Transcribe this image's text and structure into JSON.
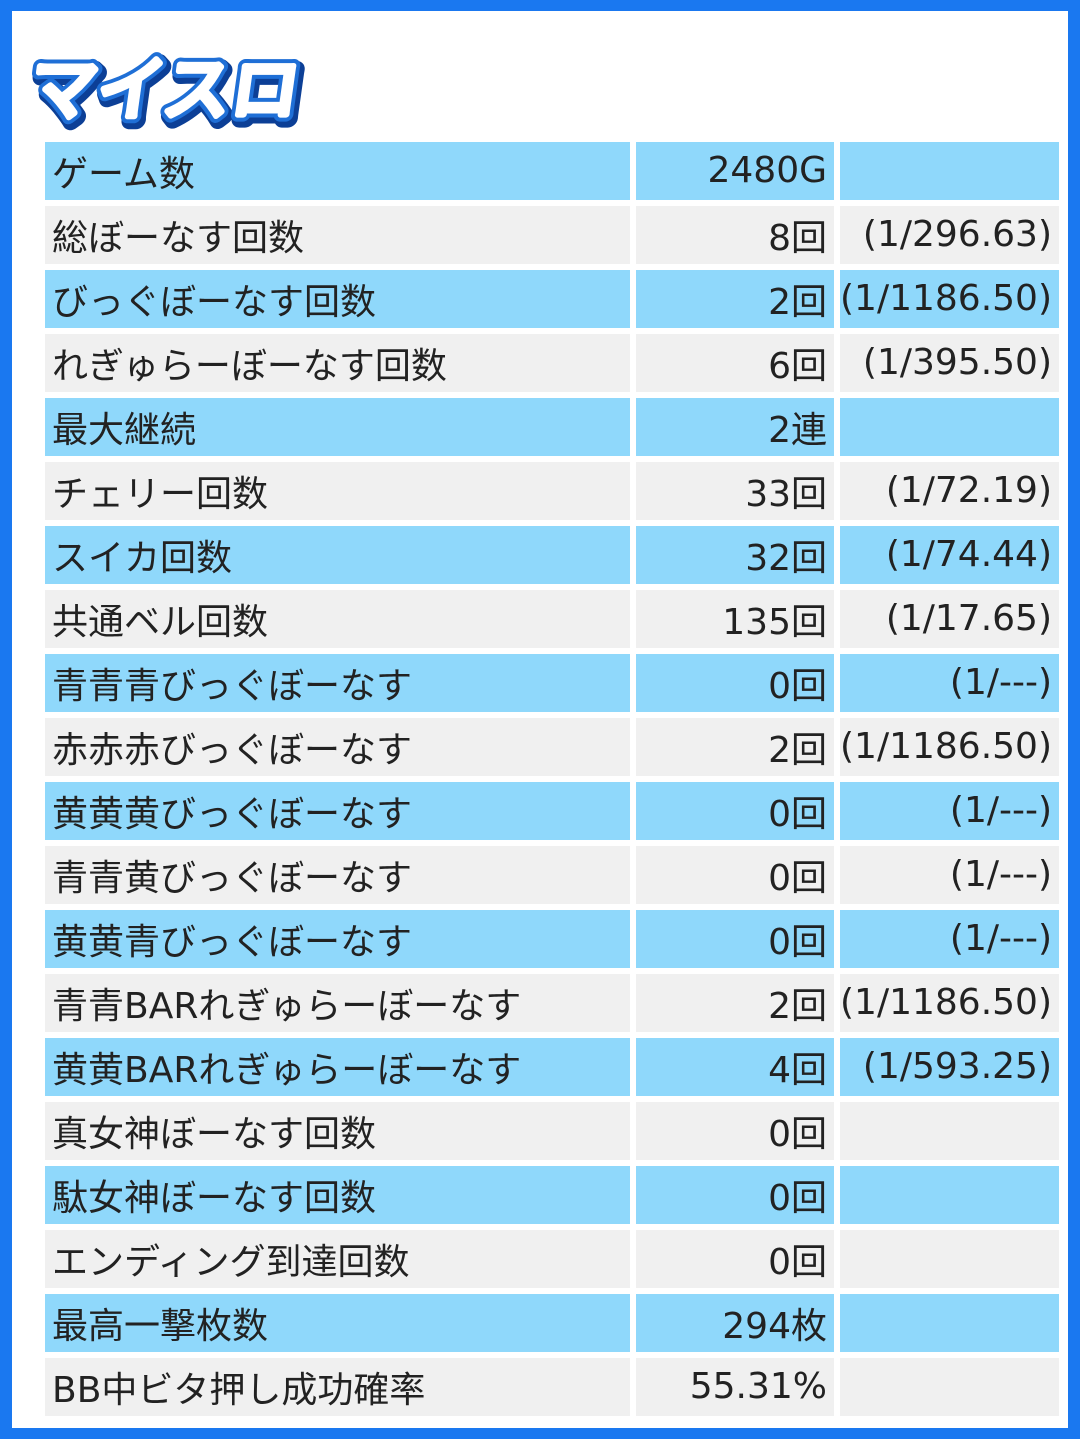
{
  "header": {
    "logo_text": "マイスロ"
  },
  "colors": {
    "frame": "#1a78f0",
    "row_highlight": "#8fd8fb",
    "row_plain": "#f0f0f0"
  },
  "stats": {
    "rows": [
      {
        "label": "ゲーム数",
        "value": "2480G",
        "rate": ""
      },
      {
        "label": "総ぼーなす回数",
        "value": "8回",
        "rate": "(1/296.63)"
      },
      {
        "label": "びっぐぼーなす回数",
        "value": "2回",
        "rate": "(1/1186.50)"
      },
      {
        "label": "れぎゅらーぼーなす回数",
        "value": "6回",
        "rate": "(1/395.50)"
      },
      {
        "label": "最大継続",
        "value": "2連",
        "rate": ""
      },
      {
        "label": "チェリー回数",
        "value": "33回",
        "rate": "(1/72.19)"
      },
      {
        "label": "スイカ回数",
        "value": "32回",
        "rate": "(1/74.44)"
      },
      {
        "label": "共通ベル回数",
        "value": "135回",
        "rate": "(1/17.65)"
      },
      {
        "label": "青青青びっぐぼーなす",
        "value": "0回",
        "rate": "(1/---)"
      },
      {
        "label": "赤赤赤びっぐぼーなす",
        "value": "2回",
        "rate": "(1/1186.50)"
      },
      {
        "label": "黄黄黄びっぐぼーなす",
        "value": "0回",
        "rate": "(1/---)"
      },
      {
        "label": "青青黄びっぐぼーなす",
        "value": "0回",
        "rate": "(1/---)"
      },
      {
        "label": "黄黄青びっぐぼーなす",
        "value": "0回",
        "rate": "(1/---)"
      },
      {
        "label": "青青BARれぎゅらーぼーなす",
        "value": "2回",
        "rate": "(1/1186.50)"
      },
      {
        "label": "黄黄BARれぎゅらーぼーなす",
        "value": "4回",
        "rate": "(1/593.25)"
      },
      {
        "label": "真女神ぼーなす回数",
        "value": "0回",
        "rate": ""
      },
      {
        "label": "駄女神ぼーなす回数",
        "value": "0回",
        "rate": ""
      },
      {
        "label": "エンディング到達回数",
        "value": "0回",
        "rate": ""
      },
      {
        "label": "最高一撃枚数",
        "value": "294枚",
        "rate": ""
      },
      {
        "label": "BB中ビタ押し成功確率",
        "value": "55.31%",
        "rate": ""
      }
    ]
  }
}
